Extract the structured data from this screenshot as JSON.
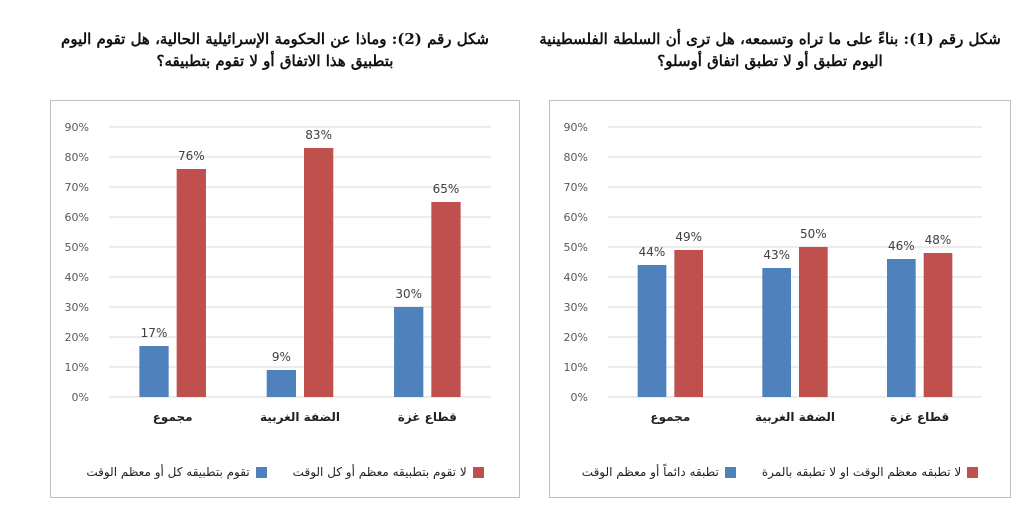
{
  "charts": {
    "left_title": "شكل رقم (2): وماذا عن الحكومة الإسرائيلية الحالية، هل تقوم اليوم بتطبيق هذا الاتفاق أو لا تقوم بتطبيقه؟",
    "right_title": "شكل رقم (1): بناءً على ما تراه وتسمعه، هل ترى أن السلطة الفلسطينية اليوم تطبق أو لا تطبق اتفاق أوسلو؟"
  },
  "chart_data": [
    {
      "type": "bar",
      "title": "شكل رقم (2): وماذا عن الحكومة الإسرائيلية الحالية، هل تقوم اليوم بتطبيق هذا الاتفاق أو لا تقوم بتطبيقه؟",
      "categories": [
        "مجموع",
        "الضفة الغربية",
        "قطاع غزة"
      ],
      "series": [
        {
          "name": "تقوم بتطبيقه كل أو معظم الوقت",
          "values": [
            17,
            9,
            30
          ],
          "labels": [
            "17%",
            "9%",
            "30%"
          ],
          "color": "#4F81BD"
        },
        {
          "name": "لا تقوم بتطبيقه معظم أو كل الوقت",
          "values": [
            76,
            83,
            65
          ],
          "labels": [
            "76%",
            "83%",
            "65%"
          ],
          "color": "#C0504D"
        }
      ],
      "ylim": [
        0,
        90
      ],
      "yticks": [
        "0%",
        "10%",
        "20%",
        "30%",
        "40%",
        "50%",
        "60%",
        "70%",
        "80%",
        "90%"
      ],
      "grid": true,
      "legend": "bottom"
    },
    {
      "type": "bar",
      "title": "شكل رقم (1): بناءً على ما تراه وتسمعه، هل ترى أن السلطة الفلسطينية اليوم تطبق أو لا تطبق اتفاق أوسلو؟",
      "categories": [
        "مجموع",
        "الضفة الغربية",
        "قطاع غزة"
      ],
      "series": [
        {
          "name": "تطبقه دائماً أو معظم الوقت",
          "values": [
            44,
            43,
            46
          ],
          "labels": [
            "44%",
            "43%",
            "46%"
          ],
          "color": "#4F81BD"
        },
        {
          "name": "لا تطبقه معظم الوقت او لا تطبقه بالمرة",
          "values": [
            49,
            50,
            48
          ],
          "labels": [
            "49%",
            "50%",
            "48%"
          ],
          "color": "#C0504D"
        }
      ],
      "ylim": [
        0,
        90
      ],
      "yticks": [
        "0%",
        "10%",
        "20%",
        "30%",
        "40%",
        "50%",
        "60%",
        "70%",
        "80%",
        "90%"
      ],
      "grid": true,
      "legend": "bottom"
    }
  ]
}
